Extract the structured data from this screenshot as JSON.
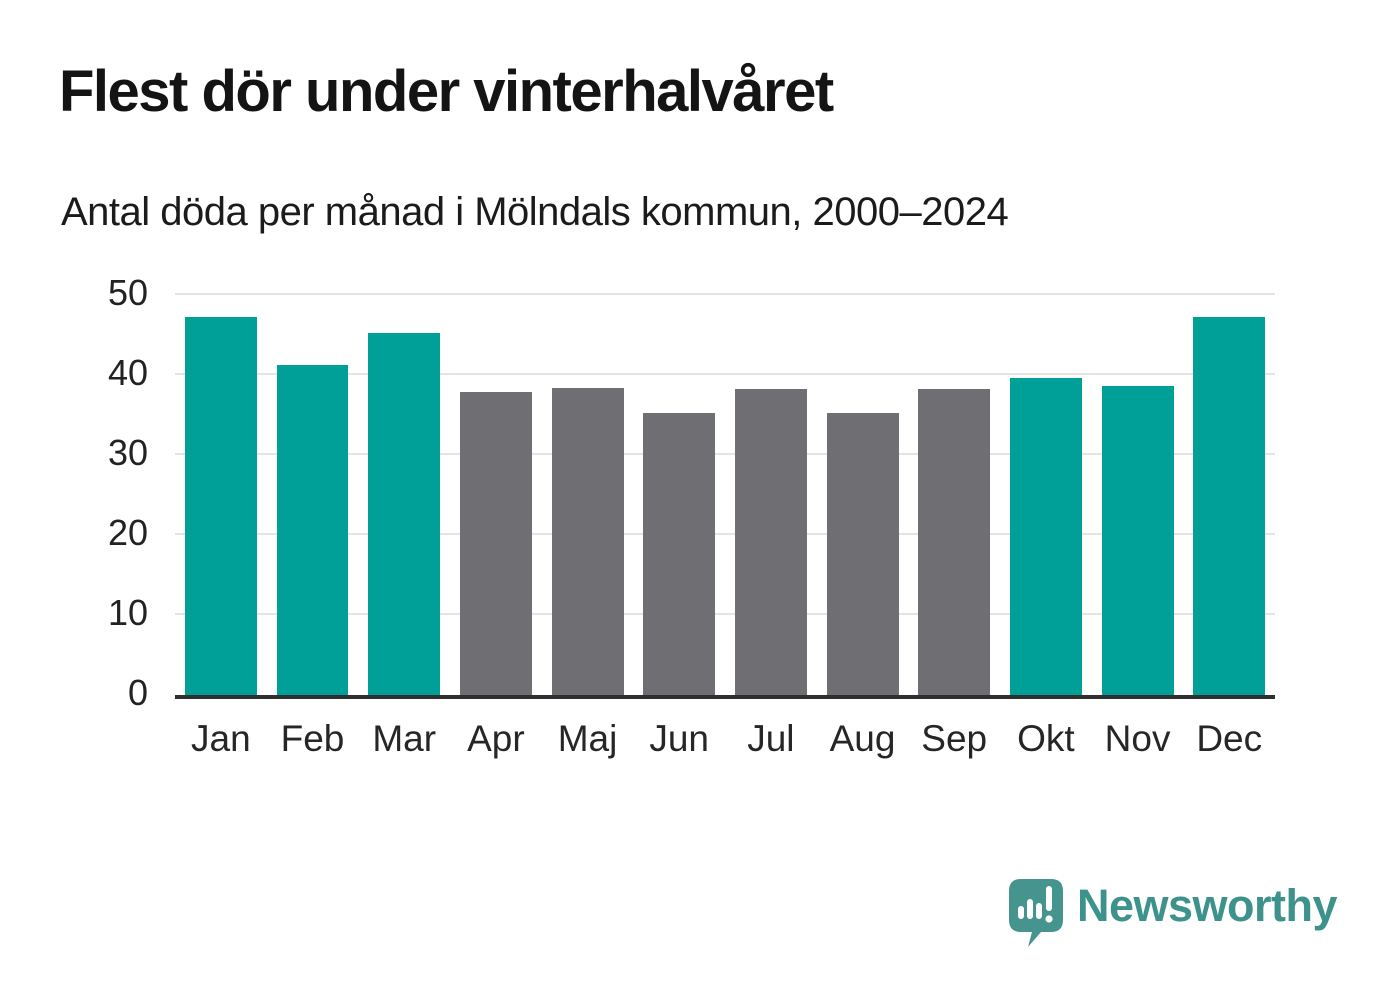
{
  "chart_data": {
    "type": "bar",
    "title": "Flest dör under vinterhalvåret",
    "subtitle": "Antal döda per månad i Mölndals kommun, 2000–2024",
    "categories": [
      "Jan",
      "Feb",
      "Mar",
      "Apr",
      "Maj",
      "Jun",
      "Jul",
      "Aug",
      "Sep",
      "Okt",
      "Nov",
      "Dec"
    ],
    "values": [
      47.3,
      41.3,
      45.2,
      37.9,
      38.4,
      35.3,
      38.3,
      35.2,
      38.2,
      39.6,
      38.6,
      47.3
    ],
    "bar_colors": [
      "winter",
      "winter",
      "winter",
      "summer",
      "summer",
      "summer",
      "summer",
      "summer",
      "summer",
      "winter",
      "winter",
      "winter"
    ],
    "palette": {
      "winter": "#00a099",
      "summer": "#6e6e73"
    },
    "xlabel": "",
    "ylabel": "",
    "ylim": [
      0,
      50
    ],
    "yticks": [
      0,
      10,
      20,
      30,
      40,
      50
    ],
    "grid": true,
    "legend": false,
    "gridline_color": "#e4e4e4",
    "axis_color": "#2f2f2f"
  },
  "footer": {
    "brand": "Newsworthy",
    "brand_color": "#3e928c",
    "logo_color": "#46948e",
    "logo_icon": "speech-bubble-bar-chart-icon"
  }
}
